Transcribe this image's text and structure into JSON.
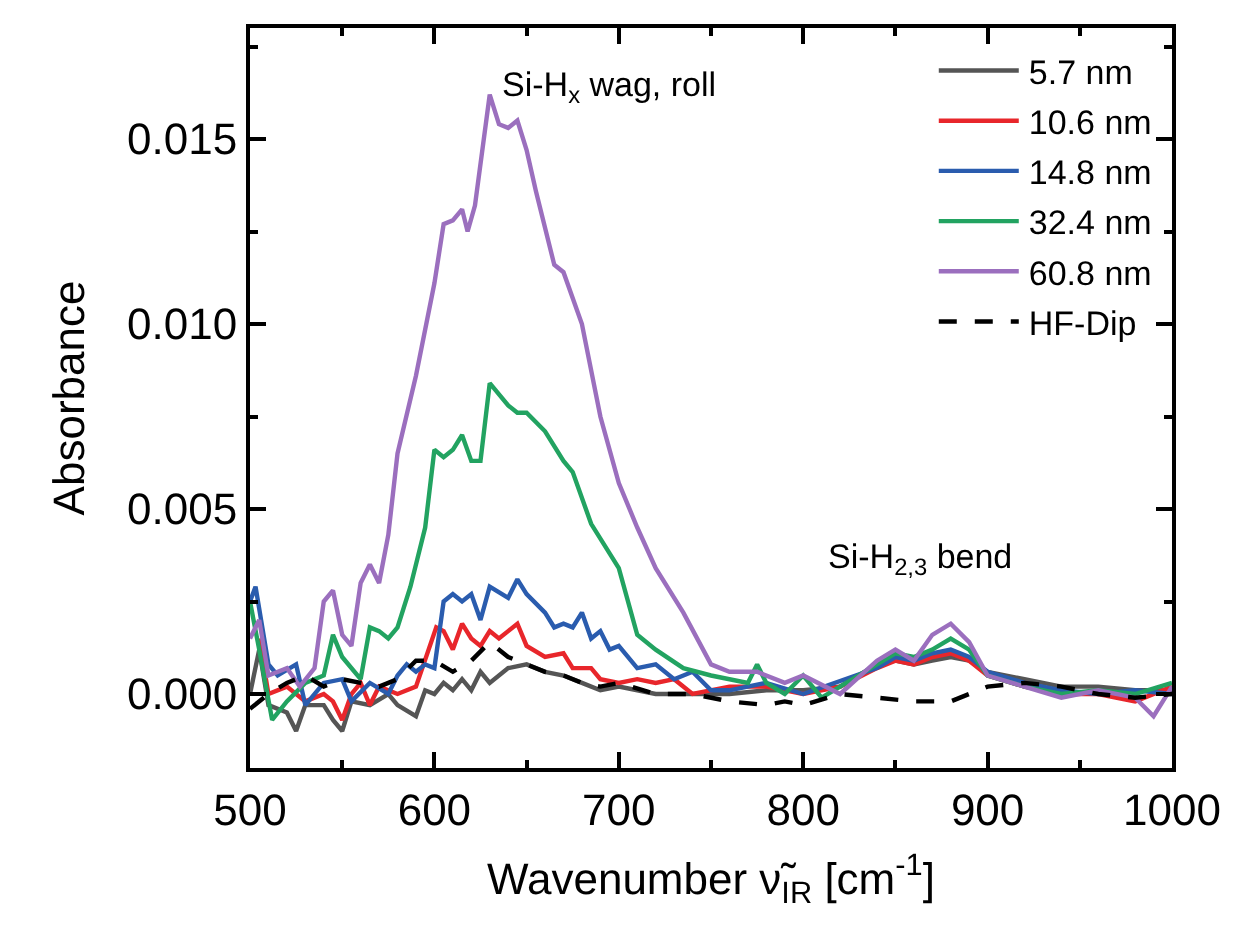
{
  "chart_data": {
    "type": "line",
    "xlabel": "Wavenumber ν̃$_{IR}$ [cm$^{-1}$]",
    "ylabel": "Absorbance",
    "xlim": [
      500,
      1000
    ],
    "xticks": [
      500,
      600,
      700,
      800,
      900,
      1000
    ],
    "ylim": [
      -0.002,
      0.018
    ],
    "yticks": [
      {
        "value": 0,
        "label": "0.000"
      },
      0.005,
      {
        "value": 0.01,
        "label": "0.010"
      },
      0.015
    ],
    "legend": "top right",
    "line_style": "solid",
    "marker": "none",
    "annotations": [
      "Si-H$_{x}$ wag, roll",
      "Si-H$_{2,3}$ bend"
    ],
    "series": [
      {
        "name": "5.7 nm",
        "color": "#555555",
        "x": [
          500,
          505,
          510,
          520,
          525,
          530,
          540,
          545,
          550,
          555,
          565,
          575,
          580,
          590,
          595,
          600,
          605,
          610,
          615,
          620,
          625,
          630,
          640,
          650,
          660,
          670,
          680,
          690,
          700,
          720,
          740,
          760,
          780,
          800,
          820,
          840,
          850,
          860,
          870,
          880,
          890,
          900,
          920,
          940,
          960,
          980,
          1000
        ],
        "values": [
          0.0,
          0.0012,
          -0.0003,
          -0.0005,
          -0.001,
          -0.0003,
          -0.0003,
          -0.0007,
          -0.001,
          -0.0002,
          -0.0003,
          0.0,
          -0.0003,
          -0.0006,
          0.0001,
          0.0,
          0.0003,
          0.0001,
          0.0004,
          0.0001,
          0.0006,
          0.0003,
          0.0007,
          0.0008,
          0.0006,
          0.0005,
          0.0003,
          0.0001,
          0.0002,
          0.0,
          0.0,
          0.0,
          0.0001,
          0.0001,
          0.0002,
          0.0008,
          0.0009,
          0.0008,
          0.0009,
          0.001,
          0.0009,
          0.0006,
          0.0004,
          0.0002,
          0.0002,
          0.0001,
          0.0001
        ]
      },
      {
        "name": "10.6 nm",
        "color": "#e8262b",
        "x": [
          505,
          510,
          520,
          530,
          540,
          545,
          550,
          555,
          560,
          565,
          570,
          580,
          590,
          601,
          605,
          610,
          615,
          620,
          625,
          630,
          635,
          640,
          645,
          650,
          660,
          670,
          675,
          685,
          690,
          700,
          710,
          720,
          730,
          740,
          760,
          780,
          800,
          820,
          840,
          850,
          860,
          870,
          880,
          890,
          900,
          920,
          940,
          960,
          980,
          1000
        ],
        "values": [
          0.0015,
          0.0,
          0.0002,
          -0.0002,
          0.0,
          -0.0002,
          -0.0007,
          0.0,
          0.0003,
          -0.0003,
          0.0002,
          0.0,
          0.0002,
          0.0018,
          0.0017,
          0.0012,
          0.0019,
          0.0015,
          0.0013,
          0.0017,
          0.0015,
          0.0017,
          0.0019,
          0.0013,
          0.001,
          0.0011,
          0.0007,
          0.0007,
          0.0004,
          0.0003,
          0.0004,
          0.0003,
          0.0004,
          0.0,
          0.0002,
          0.0002,
          0.0,
          0.0002,
          0.0007,
          0.0009,
          0.0008,
          0.001,
          0.0011,
          0.0009,
          0.0005,
          0.0002,
          0.0,
          0.0,
          -0.0002,
          0.0002
        ]
      },
      {
        "name": "14.8 nm",
        "color": "#2a5cae",
        "x": [
          500,
          503,
          510,
          515,
          525,
          530,
          540,
          550,
          555,
          565,
          575,
          580,
          585,
          590,
          595,
          600,
          605,
          610,
          615,
          620,
          625,
          630,
          640,
          645,
          650,
          660,
          665,
          670,
          675,
          680,
          685,
          690,
          695,
          700,
          710,
          720,
          730,
          740,
          750,
          760,
          780,
          800,
          840,
          850,
          860,
          870,
          880,
          890,
          900,
          920,
          940,
          960,
          980,
          1000
        ],
        "values": [
          0.0025,
          0.0029,
          0.0008,
          0.0005,
          0.0008,
          -0.0003,
          0.0003,
          0.0004,
          -0.0002,
          0.0003,
          0.0,
          0.0005,
          0.0008,
          0.0006,
          0.0008,
          0.0007,
          0.0025,
          0.0027,
          0.0025,
          0.0027,
          0.002,
          0.0029,
          0.0026,
          0.0031,
          0.0027,
          0.0022,
          0.0018,
          0.0019,
          0.0018,
          0.0022,
          0.0015,
          0.0017,
          0.0012,
          0.0013,
          0.0007,
          0.0008,
          0.0004,
          0.0006,
          0.0001,
          0.0001,
          0.0003,
          0.0,
          0.0007,
          0.001,
          0.0009,
          0.0011,
          0.0012,
          0.001,
          0.0006,
          0.0003,
          0.0001,
          0.0,
          0.0001,
          0.0
        ]
      },
      {
        "name": "32.4 nm",
        "color": "#22a361",
        "x": [
          500,
          505,
          512,
          520,
          530,
          540,
          545,
          550,
          560,
          565,
          570,
          575,
          580,
          587,
          595,
          600,
          605,
          610,
          615,
          620,
          625,
          630,
          640,
          645,
          650,
          660,
          670,
          675,
          685,
          700,
          710,
          720,
          735,
          750,
          770,
          775,
          780,
          790,
          800,
          810,
          820,
          840,
          850,
          860,
          870,
          880,
          890,
          900,
          920,
          940,
          960,
          980,
          1000
        ],
        "values": [
          0.0025,
          0.0012,
          -0.0007,
          -0.0002,
          0.0003,
          0.0005,
          0.0016,
          0.001,
          0.0004,
          0.0018,
          0.0017,
          0.0015,
          0.0018,
          0.0029,
          0.0045,
          0.0066,
          0.0064,
          0.0066,
          0.007,
          0.0063,
          0.0063,
          0.0084,
          0.0078,
          0.0076,
          0.0076,
          0.0071,
          0.0063,
          0.006,
          0.0046,
          0.0034,
          0.0016,
          0.0012,
          0.0007,
          0.0005,
          0.0003,
          0.0008,
          0.0003,
          0.0,
          0.0005,
          -0.0001,
          0.0002,
          0.0008,
          0.0011,
          0.001,
          0.0012,
          0.0015,
          0.0012,
          0.0005,
          0.0002,
          0.0,
          0.0001,
          0.0,
          0.0003
        ]
      },
      {
        "name": "60.8 nm",
        "color": "#9b6fbe",
        "x": [
          500,
          505,
          510,
          520,
          527,
          535,
          540,
          545,
          550,
          555,
          560,
          565,
          570,
          575,
          580,
          590,
          600,
          605,
          610,
          615,
          618,
          622,
          630,
          635,
          640,
          645,
          650,
          655,
          665,
          670,
          680,
          690,
          700,
          710,
          720,
          735,
          750,
          760,
          775,
          790,
          800,
          820,
          840,
          850,
          860,
          870,
          880,
          890,
          900,
          920,
          940,
          960,
          980,
          990,
          1000
        ],
        "values": [
          0.0015,
          0.002,
          0.0005,
          0.0007,
          0.0002,
          0.0007,
          0.0025,
          0.0028,
          0.0016,
          0.0013,
          0.003,
          0.0035,
          0.003,
          0.0043,
          0.0065,
          0.0086,
          0.0111,
          0.0127,
          0.0128,
          0.0131,
          0.0125,
          0.0132,
          0.0162,
          0.0154,
          0.0153,
          0.0155,
          0.0147,
          0.0136,
          0.0116,
          0.0114,
          0.01,
          0.0075,
          0.0057,
          0.0045,
          0.0034,
          0.0022,
          0.0008,
          0.0006,
          0.0006,
          0.0003,
          0.0005,
          0.0,
          0.0009,
          0.0012,
          0.0009,
          0.0016,
          0.0019,
          0.0014,
          0.0005,
          0.0002,
          -0.0001,
          0.0001,
          -0.0001,
          -0.0006,
          0.0002
        ]
      },
      {
        "name": "HF-Dip",
        "color": "#000000",
        "line_style": "dashed",
        "x": [
          500,
          510,
          520,
          530,
          540,
          550,
          560,
          570,
          580,
          590,
          600,
          610,
          620,
          630,
          640,
          650,
          660,
          670,
          680,
          690,
          700,
          720,
          740,
          760,
          780,
          790,
          800,
          820,
          840,
          860,
          880,
          900,
          920,
          940,
          960,
          980,
          1000
        ],
        "values": [
          -0.0004,
          0.0,
          0.0003,
          0.0005,
          0.0002,
          0.0004,
          0.0003,
          0.0002,
          0.0004,
          0.0009,
          0.0009,
          0.0006,
          0.0009,
          0.0014,
          0.001,
          0.0008,
          0.0006,
          0.0005,
          0.0003,
          0.0002,
          0.0003,
          0.0,
          0.0,
          -0.0002,
          -0.0003,
          -0.0002,
          -0.0003,
          0.0,
          -0.0001,
          -0.0002,
          -0.0002,
          0.0002,
          0.0003,
          0.0002,
          0.0,
          -0.0001,
          0.0
        ]
      }
    ]
  }
}
